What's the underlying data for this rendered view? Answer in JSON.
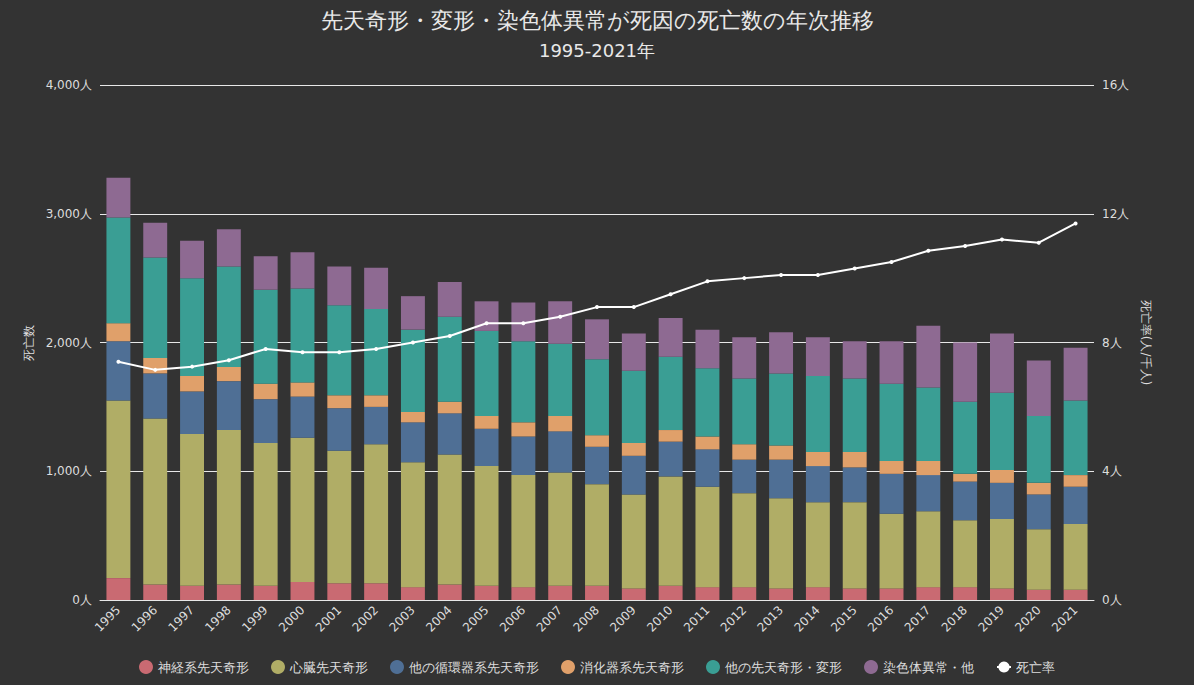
{
  "chart_data": {
    "type": "bar",
    "title": "先天奇形・変形・染色体異常が死因の死亡数の年次推移",
    "subtitle": "1995-2021年",
    "y_label": "死亡数",
    "y2_label": "死亡率(人/千人)",
    "stacked": true,
    "grid": true,
    "legend": "bottom",
    "categories": [
      "1995",
      "1996",
      "1997",
      "1998",
      "1999",
      "2000",
      "2001",
      "2002",
      "2003",
      "2004",
      "2005",
      "2006",
      "2007",
      "2008",
      "2009",
      "2010",
      "2011",
      "2012",
      "2013",
      "2014",
      "2015",
      "2016",
      "2017",
      "2018",
      "2019",
      "2020",
      "2021"
    ],
    "ylim": [
      0,
      4000
    ],
    "yticks": [
      {
        "value": 0,
        "label": "0人"
      },
      {
        "value": 1000,
        "label": "1,000人"
      },
      {
        "value": 2000,
        "label": "2,000人"
      },
      {
        "value": 3000,
        "label": "3,000人"
      },
      {
        "value": 4000,
        "label": "4,000人"
      }
    ],
    "y2lim": [
      0,
      16
    ],
    "y2ticks": [
      {
        "value": 0,
        "label": "0人"
      },
      {
        "value": 4,
        "label": "4人"
      },
      {
        "value": 8,
        "label": "8人"
      },
      {
        "value": 12,
        "label": "12人"
      },
      {
        "value": 16,
        "label": "16人"
      }
    ],
    "series": [
      {
        "name": "神経系先天奇形",
        "type": "bar",
        "color": "#c96a72",
        "values": [
          170,
          120,
          110,
          120,
          110,
          140,
          130,
          130,
          100,
          120,
          110,
          100,
          110,
          110,
          90,
          110,
          100,
          100,
          90,
          100,
          90,
          90,
          100,
          100,
          90,
          80,
          80
        ]
      },
      {
        "name": "心臓先天奇形",
        "type": "bar",
        "color": "#b0ad66",
        "values": [
          1380,
          1290,
          1180,
          1200,
          1110,
          1120,
          1030,
          1080,
          970,
          1010,
          930,
          870,
          880,
          790,
          730,
          850,
          780,
          730,
          700,
          660,
          670,
          580,
          590,
          520,
          540,
          470,
          510
        ]
      },
      {
        "name": "他の循環器系先天奇形",
        "type": "bar",
        "color": "#4f6f95",
        "values": [
          460,
          350,
          330,
          380,
          340,
          320,
          330,
          290,
          310,
          320,
          290,
          300,
          320,
          290,
          300,
          270,
          290,
          260,
          300,
          280,
          270,
          310,
          280,
          300,
          280,
          270,
          290
        ]
      },
      {
        "name": "消化器系先天奇形",
        "type": "bar",
        "color": "#e0a06a",
        "values": [
          140,
          120,
          120,
          110,
          120,
          110,
          100,
          90,
          80,
          90,
          100,
          110,
          120,
          90,
          100,
          90,
          100,
          120,
          110,
          110,
          120,
          100,
          110,
          60,
          100,
          90,
          90
        ]
      },
      {
        "name": "他の先天奇形・変形",
        "type": "bar",
        "color": "#3a9e94",
        "values": [
          820,
          780,
          760,
          780,
          730,
          730,
          700,
          670,
          640,
          660,
          660,
          630,
          560,
          590,
          560,
          570,
          530,
          510,
          560,
          590,
          570,
          600,
          570,
          560,
          600,
          520,
          580
        ]
      },
      {
        "name": "染色体異常・他",
        "type": "bar",
        "color": "#8e6a92",
        "values": [
          310,
          270,
          290,
          290,
          260,
          280,
          300,
          320,
          260,
          270,
          230,
          300,
          330,
          310,
          290,
          300,
          300,
          320,
          320,
          300,
          290,
          330,
          480,
          460,
          460,
          430,
          410
        ]
      },
      {
        "name": "死亡率",
        "type": "line",
        "axis": "y2",
        "color": "#ffffff",
        "marker": "circle",
        "values": [
          7.4,
          7.15,
          7.25,
          7.45,
          7.8,
          7.7,
          7.7,
          7.8,
          8.0,
          8.2,
          8.6,
          8.6,
          8.8,
          9.1,
          9.1,
          9.5,
          9.9,
          10.0,
          10.1,
          10.1,
          10.3,
          10.5,
          10.85,
          11.0,
          11.2,
          11.1,
          11.7
        ]
      }
    ]
  }
}
